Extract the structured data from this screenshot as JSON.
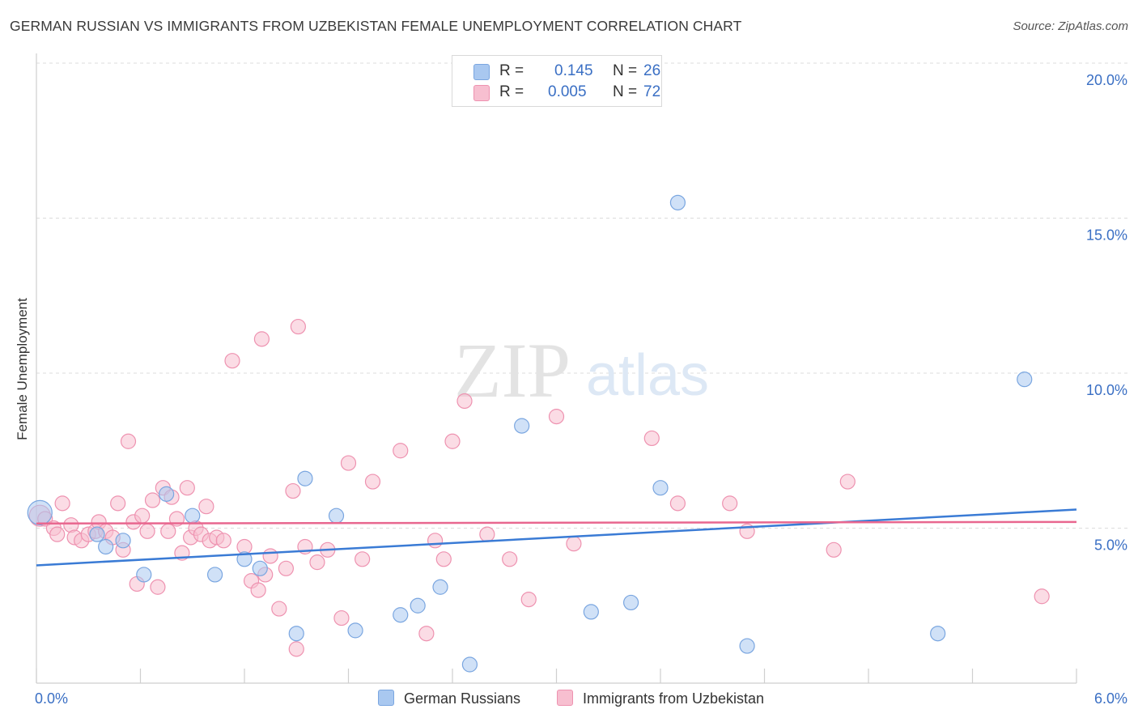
{
  "header": {
    "title": "GERMAN RUSSIAN VS IMMIGRANTS FROM UZBEKISTAN FEMALE UNEMPLOYMENT CORRELATION CHART",
    "source": "Source: ZipAtlas.com"
  },
  "watermark": {
    "zip": "ZIP",
    "atlas": "atlas"
  },
  "legend": {
    "rows": [
      {
        "r_label": "R =",
        "r_value": "0.145",
        "n_label": "N =",
        "n_value": "26",
        "color": "#a9c8f0",
        "border": "#7aa6e0"
      },
      {
        "r_label": "R =",
        "r_value": "0.005",
        "n_label": "N =",
        "n_value": "72",
        "color": "#f7bfd0",
        "border": "#ee92b0"
      }
    ]
  },
  "bottom_legend": {
    "series1": "German Russians",
    "series2": "Immigrants from Uzbekistan"
  },
  "chart_data": {
    "type": "scatter",
    "title": "GERMAN RUSSIAN VS IMMIGRANTS FROM UZBEKISTAN FEMALE UNEMPLOYMENT CORRELATION CHART",
    "xlabel": "",
    "ylabel": "Female Unemployment",
    "xlim": [
      0,
      6
    ],
    "ylim": [
      0,
      20
    ],
    "x_tick_labels": [
      "0.0%",
      "6.0%"
    ],
    "y_tick_labels": [
      "5.0%",
      "10.0%",
      "15.0%",
      "20.0%"
    ],
    "y_ticks": [
      5,
      10,
      15,
      20
    ],
    "grid": true,
    "colors": {
      "series1": "#3a7bd5",
      "series2": "#e8678f",
      "fill1": "#a9c8f0",
      "fill2": "#f7bfd0"
    },
    "series": [
      {
        "name": "German Russians",
        "trend": [
          [
            0,
            3.8
          ],
          [
            6,
            5.6
          ]
        ],
        "points": [
          [
            0.02,
            5.5
          ],
          [
            0.35,
            4.8
          ],
          [
            0.4,
            4.4
          ],
          [
            0.5,
            4.6
          ],
          [
            0.62,
            3.5
          ],
          [
            0.75,
            6.1
          ],
          [
            0.9,
            5.4
          ],
          [
            1.03,
            3.5
          ],
          [
            1.2,
            4.0
          ],
          [
            1.29,
            3.7
          ],
          [
            1.5,
            1.6
          ],
          [
            1.55,
            6.6
          ],
          [
            1.73,
            5.4
          ],
          [
            1.84,
            1.7
          ],
          [
            2.1,
            2.2
          ],
          [
            2.2,
            2.5
          ],
          [
            2.33,
            3.1
          ],
          [
            2.5,
            0.6
          ],
          [
            2.8,
            8.3
          ],
          [
            3.2,
            2.3
          ],
          [
            3.43,
            2.6
          ],
          [
            3.6,
            6.3
          ],
          [
            3.7,
            15.5
          ],
          [
            4.1,
            1.2
          ],
          [
            5.2,
            1.6
          ],
          [
            5.7,
            9.8
          ]
        ]
      },
      {
        "name": "Immigrants from Uzbekistan",
        "trend": [
          [
            0,
            5.15
          ],
          [
            6,
            5.2
          ]
        ],
        "points": [
          [
            0.02,
            5.4
          ],
          [
            0.05,
            5.3
          ],
          [
            0.1,
            5.0
          ],
          [
            0.12,
            4.8
          ],
          [
            0.15,
            5.8
          ],
          [
            0.2,
            5.1
          ],
          [
            0.22,
            4.7
          ],
          [
            0.26,
            4.6
          ],
          [
            0.3,
            4.8
          ],
          [
            0.34,
            4.9
          ],
          [
            0.36,
            5.2
          ],
          [
            0.4,
            4.9
          ],
          [
            0.44,
            4.7
          ],
          [
            0.47,
            5.8
          ],
          [
            0.5,
            4.3
          ],
          [
            0.53,
            7.8
          ],
          [
            0.56,
            5.2
          ],
          [
            0.58,
            3.2
          ],
          [
            0.61,
            5.4
          ],
          [
            0.64,
            4.9
          ],
          [
            0.67,
            5.9
          ],
          [
            0.7,
            3.1
          ],
          [
            0.73,
            6.3
          ],
          [
            0.76,
            4.9
          ],
          [
            0.78,
            6.0
          ],
          [
            0.81,
            5.3
          ],
          [
            0.84,
            4.2
          ],
          [
            0.87,
            6.3
          ],
          [
            0.89,
            4.7
          ],
          [
            0.92,
            5.0
          ],
          [
            0.95,
            4.8
          ],
          [
            0.98,
            5.7
          ],
          [
            1.0,
            4.6
          ],
          [
            1.04,
            4.7
          ],
          [
            1.08,
            4.6
          ],
          [
            1.13,
            10.4
          ],
          [
            1.2,
            4.4
          ],
          [
            1.24,
            3.3
          ],
          [
            1.28,
            3.0
          ],
          [
            1.32,
            3.5
          ],
          [
            1.35,
            4.1
          ],
          [
            1.4,
            2.4
          ],
          [
            1.44,
            3.7
          ],
          [
            1.48,
            6.2
          ],
          [
            1.51,
            11.5
          ],
          [
            1.55,
            4.4
          ],
          [
            1.62,
            3.9
          ],
          [
            1.68,
            4.3
          ],
          [
            1.76,
            2.1
          ],
          [
            1.8,
            7.1
          ],
          [
            1.88,
            4.0
          ],
          [
            1.94,
            6.5
          ],
          [
            2.1,
            7.5
          ],
          [
            2.25,
            1.6
          ],
          [
            2.3,
            4.6
          ],
          [
            2.35,
            4.0
          ],
          [
            2.4,
            7.8
          ],
          [
            2.47,
            9.1
          ],
          [
            2.6,
            4.8
          ],
          [
            2.73,
            4.0
          ],
          [
            2.84,
            2.7
          ],
          [
            3.0,
            8.6
          ],
          [
            3.1,
            4.5
          ],
          [
            3.55,
            7.9
          ],
          [
            3.7,
            5.8
          ],
          [
            4.0,
            5.8
          ],
          [
            4.1,
            4.9
          ],
          [
            4.6,
            4.3
          ],
          [
            4.68,
            6.5
          ],
          [
            5.8,
            2.8
          ],
          [
            1.3,
            11.1
          ],
          [
            1.5,
            1.1
          ]
        ]
      }
    ]
  }
}
